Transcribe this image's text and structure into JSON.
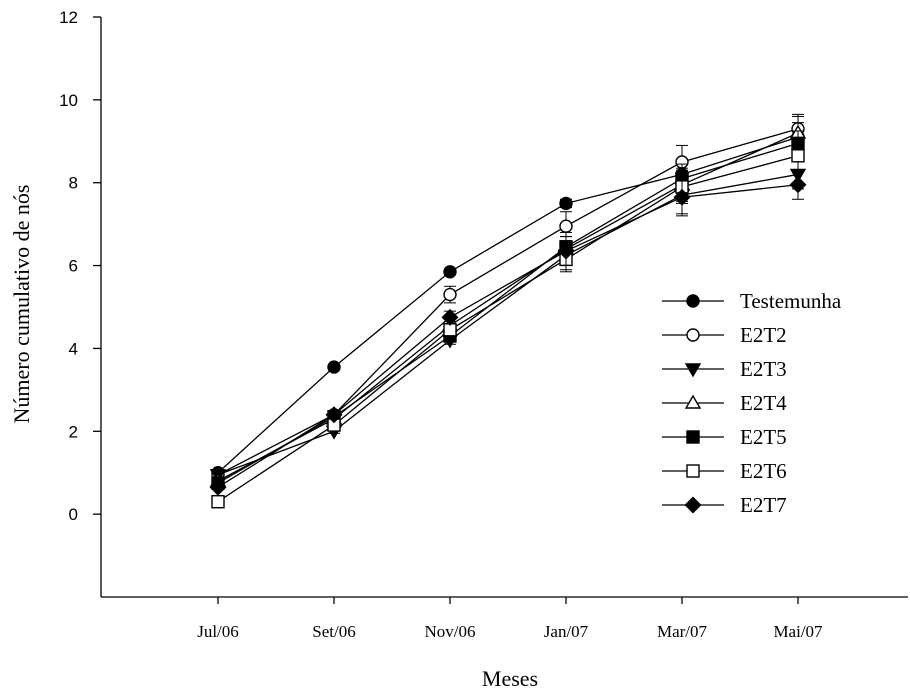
{
  "chart_data": {
    "type": "line",
    "xlabel": "Meses",
    "ylabel": "Número cumulativo de nós",
    "categories": [
      "Jul/06",
      "Set/06",
      "Nov/06",
      "Jan/07",
      "Mar/07",
      "Mai/07"
    ],
    "ylim": [
      -2,
      12
    ],
    "yticks": [
      0,
      2,
      4,
      6,
      8,
      10,
      12
    ],
    "grid": false,
    "legend_position": "right",
    "series": [
      {
        "name": "Testemunha",
        "marker": "circle",
        "fill": "filled",
        "values": [
          1.0,
          3.55,
          5.85,
          7.5,
          8.2,
          9.1
        ],
        "errors": [
          0.05,
          0.05,
          0.05,
          0.1,
          0.3,
          0.35
        ]
      },
      {
        "name": "E2T2",
        "marker": "circle",
        "fill": "open",
        "values": [
          0.95,
          2.4,
          5.3,
          6.95,
          8.5,
          9.3
        ],
        "errors": [
          0.05,
          0.05,
          0.2,
          0.35,
          0.4,
          0.35
        ]
      },
      {
        "name": "E2T3",
        "marker": "triangle-down",
        "fill": "filled",
        "values": [
          0.95,
          2.0,
          4.2,
          6.25,
          7.7,
          8.2
        ],
        "errors": [
          0.05,
          0.05,
          0.1,
          0.35,
          0.45,
          0.35
        ]
      },
      {
        "name": "E2T4",
        "marker": "triangle-up",
        "fill": "open",
        "values": [
          0.8,
          2.3,
          4.55,
          6.4,
          7.95,
          9.2
        ],
        "errors": [
          0.05,
          0.05,
          0.1,
          0.3,
          0.4,
          0.4
        ]
      },
      {
        "name": "E2T5",
        "marker": "square",
        "fill": "filled",
        "values": [
          0.75,
          2.35,
          4.3,
          6.45,
          8.1,
          8.95
        ],
        "errors": [
          0.05,
          0.05,
          0.1,
          0.35,
          0.35,
          0.3
        ]
      },
      {
        "name": "E2T6",
        "marker": "square",
        "fill": "open",
        "values": [
          0.3,
          2.15,
          4.45,
          6.15,
          7.9,
          8.65
        ],
        "errors": [
          0.05,
          0.05,
          0.1,
          0.3,
          0.4,
          0.35
        ]
      },
      {
        "name": "E2T7",
        "marker": "diamond",
        "fill": "filled",
        "values": [
          0.65,
          2.4,
          4.75,
          6.35,
          7.65,
          7.95
        ],
        "errors": [
          0.05,
          0.05,
          0.15,
          0.35,
          0.45,
          0.35
        ]
      }
    ]
  }
}
